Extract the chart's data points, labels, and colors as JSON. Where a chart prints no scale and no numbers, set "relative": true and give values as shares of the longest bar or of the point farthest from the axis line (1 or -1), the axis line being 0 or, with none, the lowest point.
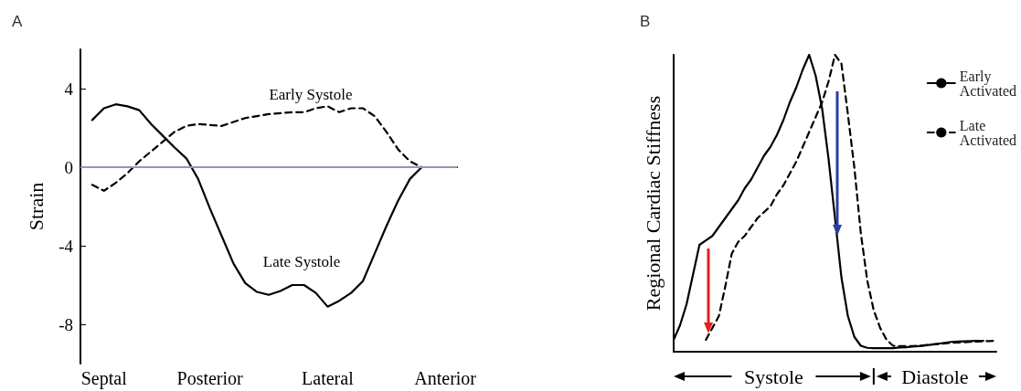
{
  "chart_data": [
    {
      "type": "line",
      "title": "A",
      "ylabel": "Strain",
      "ylim": [
        -10,
        6
      ],
      "yticks": [
        4,
        0,
        -4,
        -8
      ],
      "categories": [
        null,
        null,
        "Septal",
        null,
        null,
        null,
        null,
        null,
        null,
        null,
        null,
        "Posterior",
        null,
        null,
        null,
        null,
        null,
        null,
        null,
        null,
        null,
        "Lateral",
        null,
        null,
        null,
        null,
        null,
        null,
        null,
        null,
        null,
        "Anterior",
        null
      ],
      "ref_lines": [
        {
          "axis": "y",
          "value": 0,
          "color": "#c8c8e8"
        }
      ],
      "annotations": [
        "Early Systole",
        "Late Systole"
      ],
      "series": [
        {
          "color": "#000000",
          "line_style": "solid",
          "values": [
            null,
            2.4,
            3.0,
            3.2,
            3.1,
            2.9,
            2.2,
            1.6,
            1.0,
            0.45,
            -0.6,
            -2.1,
            -3.5,
            -4.9,
            -5.9,
            -6.35,
            -6.5,
            -6.3,
            -6.0,
            -6.0,
            -6.4,
            -7.1,
            -6.8,
            -6.4,
            -5.8,
            -4.4,
            -3.0,
            -1.7,
            -0.6,
            0,
            null,
            null,
            null
          ]
        },
        {
          "color": "#000000",
          "line_style": "dashed",
          "values": [
            null,
            -0.9,
            -1.2,
            -0.8,
            -0.3,
            0.3,
            0.8,
            1.3,
            1.8,
            2.1,
            2.2,
            2.15,
            2.1,
            2.3,
            2.5,
            2.6,
            2.7,
            2.75,
            2.8,
            2.8,
            3.0,
            3.1,
            2.8,
            3.0,
            3.0,
            2.6,
            1.8,
            0.9,
            0.3,
            0,
            null,
            null,
            null
          ]
        }
      ],
      "marker": "none"
    },
    {
      "type": "line",
      "title": "B",
      "ylabel": "Regional Cardiac Stiffness",
      "relative": true,
      "tick_labels": false,
      "legend": "top right",
      "categories": [
        null,
        null,
        null,
        null,
        null,
        null,
        null,
        null,
        null,
        null,
        null,
        null,
        null,
        null,
        null,
        null,
        null,
        null,
        null,
        null,
        null,
        null,
        null,
        null,
        null,
        null,
        null,
        null,
        null,
        null,
        null,
        null,
        null,
        null,
        null,
        null,
        null,
        null,
        null,
        null,
        null,
        null,
        null,
        null,
        null,
        null,
        null,
        null,
        null,
        null,
        null
      ],
      "annotations": [
        "Systole",
        "Diastole"
      ],
      "series": [
        {
          "name": "Early Activated",
          "color": "#000000",
          "line_style": "solid",
          "values": [
            0.04,
            0.09,
            0.16,
            0.26,
            0.36,
            0.375,
            0.39,
            0.42,
            0.45,
            0.48,
            0.51,
            0.55,
            0.58,
            0.62,
            0.66,
            0.69,
            0.73,
            0.78,
            0.84,
            0.89,
            0.95,
            1,
            0.93,
            0.82,
            0.65,
            0.45,
            0.25,
            0.12,
            0.05,
            0.02,
            0.013,
            0.012,
            0.012,
            0.012,
            0.012,
            0.014,
            0.015,
            0.017,
            0.019,
            0.021,
            0.024,
            0.027,
            0.03,
            0.033,
            0.034,
            0.035,
            0.036,
            0.037,
            0.037,
            null,
            null
          ]
        },
        {
          "name": "Late Activated",
          "color": "#000000",
          "line_style": "dashed",
          "values": [
            null,
            null,
            null,
            null,
            null,
            0.04,
            0.08,
            0.12,
            0.22,
            0.33,
            0.37,
            0.39,
            0.42,
            0.45,
            0.47,
            0.49,
            0.53,
            0.56,
            0.6,
            0.64,
            0.69,
            0.74,
            0.79,
            0.84,
            0.91,
            1,
            0.97,
            0.8,
            0.62,
            0.4,
            0.24,
            0.14,
            0.08,
            0.04,
            0.02,
            0.019,
            0.019,
            0.019,
            0.02,
            0.022,
            0.024,
            0.026,
            0.028,
            0.03,
            0.031,
            0.032,
            0.033,
            0.034,
            0.035,
            0.036,
            0.037
          ]
        }
      ],
      "marker": "none"
    }
  ]
}
